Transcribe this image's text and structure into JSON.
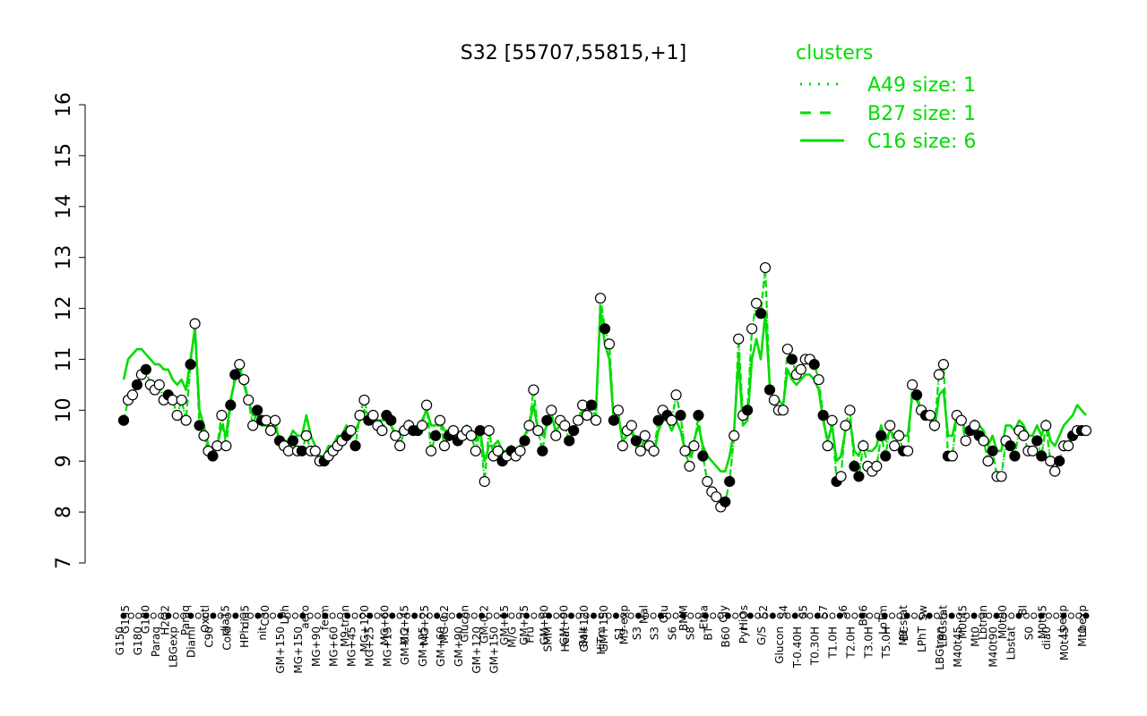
{
  "chart_data": {
    "type": "line",
    "title": "S32 [55707,55815,+1]",
    "xlabel": "",
    "ylabel": "",
    "ylim": [
      7,
      16
    ],
    "yticks": [
      7,
      8,
      9,
      10,
      11,
      12,
      13,
      14,
      15,
      16
    ],
    "grid": false,
    "legend": {
      "title": "clusters",
      "placement": "top-right",
      "entries": [
        {
          "label": "A49 size: 1",
          "style": "dotted"
        },
        {
          "label": "B27 size: 1",
          "style": "dashed"
        },
        {
          "label": "C16 size: 6",
          "style": "solid"
        }
      ]
    },
    "tick_labels_top": [
      "G135",
      "G180",
      "H2O2",
      "Paraq",
      "Oxctl",
      "dia15",
      "dia5",
      "C30",
      "LPh",
      "aero",
      "ferm",
      "M9-tran",
      "MG+120",
      "MG+60",
      "MG+45",
      "MG+25",
      "MG-0.2",
      "Glucon",
      "GM-0.2",
      "GM+15",
      "GM+25",
      "GM+60",
      "GM+90",
      "GM+120",
      "GM+150",
      "M9-exp",
      "Mal",
      "Glu",
      "BMM",
      "Etha",
      "Gly",
      "HiOs",
      "S2",
      "S4",
      "S5",
      "S7",
      "S6",
      "B36",
      "LoTm",
      "M9-stat",
      "Sw",
      "LBGstat",
      "M0t45",
      "Lbtran",
      "M0t90",
      "BI",
      "M0t45",
      "Lbexp",
      "Lbexp"
    ],
    "tick_labels_bottom": [
      "G150",
      "G180",
      "Paraq",
      "LBGexp",
      "Diami",
      "C90",
      "Cold",
      "HPh",
      "nit",
      "GM+150",
      "MG+150",
      "MG+90",
      "MG+60",
      "MG+45",
      "MG+25",
      "MG+15",
      "GM-0.2",
      "GM+25",
      "GM+60",
      "GM+90",
      "GM+120",
      "GM+150",
      "M/G",
      "Fru",
      "SMM",
      "Heat",
      "Salt",
      "HiTm",
      "S1",
      "S3",
      "S3",
      "S6",
      "S8",
      "BT",
      "B60",
      "Pyr",
      "G/S",
      "Glucon",
      "T-0.40H",
      "T0.30H",
      "T1.0H",
      "T2.0H",
      "T3.0H",
      "T5.0H",
      "BC",
      "LPhT",
      "LBGtran",
      "M40t45",
      "Mt0",
      "M40t90",
      "Lbstat",
      "S0",
      "dia0",
      "M0t45",
      "Mt0"
    ],
    "series": [
      {
        "style": "dotted",
        "values": [
          9.8,
          10.2,
          10.3,
          10.5,
          10.7,
          10.8,
          10.5,
          10.4,
          10.5,
          10.2,
          10.3,
          10.2,
          9.9,
          10.2,
          9.8,
          10.9,
          11.7,
          9.7,
          9.5,
          9.2,
          9.1,
          9.3,
          9.9,
          9.3,
          10.1,
          10.7,
          10.9,
          10.6,
          10.2,
          9.7,
          10.0,
          9.8,
          9.8,
          9.6,
          9.8,
          9.4,
          9.3,
          9.2,
          9.4,
          9.2,
          9.2,
          9.5,
          9.2,
          9.2,
          9.0,
          9.0,
          9.1,
          9.2,
          9.3,
          9.4,
          9.5,
          9.6,
          9.3,
          9.9,
          10.2,
          9.8,
          9.9,
          9.7,
          9.6,
          9.9,
          9.8,
          9.5,
          9.3,
          9.6,
          9.7,
          9.6,
          9.6,
          9.7,
          10.1,
          9.2,
          9.5,
          9.8,
          9.3,
          9.5,
          9.6,
          9.4,
          9.5,
          9.6,
          9.5,
          9.2,
          9.6,
          8.6,
          9.6,
          9.1,
          9.2,
          9.0,
          9.1,
          9.2,
          9.1,
          9.2,
          9.4,
          9.7,
          10.4,
          9.6,
          9.2,
          9.8,
          10.0,
          9.5,
          9.8,
          9.7,
          9.4,
          9.6,
          9.8,
          10.1,
          9.9,
          10.1,
          9.8,
          12.2,
          11.6,
          11.3,
          9.8,
          10.0,
          9.3,
          9.6,
          9.7,
          9.4,
          9.2,
          9.5,
          9.3,
          9.2,
          9.8,
          10.0,
          9.9,
          9.8,
          10.3,
          9.9,
          9.2,
          8.9,
          9.3,
          9.9,
          9.1,
          8.6,
          8.4,
          8.3,
          8.1,
          8.2,
          8.6,
          9.5,
          11.4,
          9.9,
          10.0,
          11.6,
          12.1,
          11.9,
          12.8,
          10.4,
          10.2,
          10.0,
          10.0,
          11.2,
          11.0,
          10.7,
          10.8,
          11.0,
          11.0,
          10.9,
          10.6,
          9.9,
          9.3,
          9.8,
          8.6,
          8.7,
          9.7,
          10.0,
          8.9,
          8.7,
          9.3,
          8.9,
          8.8,
          8.9,
          9.5,
          9.1,
          9.7,
          9.3,
          9.5,
          9.2,
          9.2,
          10.5,
          10.3,
          10.0,
          9.9,
          9.9,
          9.7,
          10.7,
          10.9,
          9.1,
          9.1,
          9.9,
          9.8,
          9.4,
          9.6,
          9.7,
          9.5,
          9.4,
          9.0,
          9.2,
          8.7,
          8.7,
          9.4,
          9.3,
          9.1,
          9.6,
          9.5,
          9.2,
          9.2,
          9.4,
          9.1,
          9.7,
          9.0,
          8.8,
          9.0,
          9.3,
          9.3,
          9.5,
          9.6,
          9.6,
          9.6
        ]
      },
      {
        "style": "dashed",
        "values": [
          9.8,
          10.2,
          10.3,
          10.5,
          10.7,
          10.8,
          10.5,
          10.4,
          10.5,
          10.2,
          10.3,
          10.2,
          9.9,
          10.2,
          9.8,
          10.9,
          11.7,
          9.7,
          9.5,
          9.2,
          9.1,
          9.3,
          9.9,
          9.3,
          10.1,
          10.7,
          10.9,
          10.6,
          10.2,
          9.7,
          10.0,
          9.8,
          9.8,
          9.6,
          9.8,
          9.4,
          9.3,
          9.2,
          9.4,
          9.2,
          9.2,
          9.5,
          9.2,
          9.2,
          9.0,
          9.0,
          9.1,
          9.2,
          9.3,
          9.4,
          9.5,
          9.6,
          9.3,
          9.9,
          10.2,
          9.8,
          9.9,
          9.7,
          9.6,
          9.9,
          9.8,
          9.5,
          9.3,
          9.6,
          9.7,
          9.6,
          9.6,
          9.7,
          10.1,
          9.2,
          9.5,
          9.8,
          9.3,
          9.5,
          9.6,
          9.4,
          9.5,
          9.6,
          9.5,
          9.2,
          9.6,
          8.6,
          9.6,
          9.1,
          9.2,
          9.0,
          9.1,
          9.2,
          9.1,
          9.2,
          9.4,
          9.7,
          10.4,
          9.6,
          9.2,
          9.8,
          10.0,
          9.5,
          9.8,
          9.7,
          9.4,
          9.6,
          9.8,
          10.1,
          9.9,
          10.1,
          9.8,
          12.2,
          11.6,
          11.3,
          9.8,
          10.0,
          9.3,
          9.6,
          9.7,
          9.4,
          9.2,
          9.5,
          9.3,
          9.2,
          9.8,
          10.0,
          9.9,
          9.8,
          10.3,
          9.9,
          9.2,
          8.9,
          9.3,
          9.9,
          9.1,
          8.6,
          8.4,
          8.3,
          8.1,
          8.2,
          8.6,
          9.5,
          11.4,
          9.9,
          10.0,
          11.6,
          12.1,
          11.9,
          12.8,
          10.4,
          10.2,
          10.0,
          10.0,
          11.2,
          11.0,
          10.7,
          10.8,
          11.0,
          11.0,
          10.9,
          10.6,
          9.9,
          9.3,
          9.8,
          8.6,
          8.7,
          9.7,
          10.0,
          8.9,
          8.7,
          9.3,
          8.9,
          8.8,
          8.9,
          9.5,
          9.1,
          9.7,
          9.3,
          9.5,
          9.2,
          9.2,
          10.5,
          10.3,
          10.0,
          9.9,
          9.9,
          9.7,
          10.7,
          10.9,
          9.1,
          9.1,
          9.9,
          9.8,
          9.4,
          9.6,
          9.7,
          9.5,
          9.4,
          9.0,
          9.2,
          8.7,
          8.7,
          9.4,
          9.3,
          9.1,
          9.6,
          9.5,
          9.2,
          9.2,
          9.4,
          9.1,
          9.7,
          9.0,
          8.8,
          9.0,
          9.3,
          9.3,
          9.5,
          9.6,
          9.6,
          9.6
        ]
      },
      {
        "style": "solid",
        "values": [
          10.6,
          11.0,
          11.1,
          11.2,
          11.2,
          11.1,
          11.0,
          10.9,
          10.9,
          10.8,
          10.8,
          10.6,
          10.5,
          10.6,
          10.4,
          11.0,
          11.6,
          10.0,
          9.7,
          9.3,
          9.2,
          9.3,
          9.7,
          9.5,
          10.2,
          10.6,
          10.8,
          10.5,
          10.2,
          9.9,
          9.9,
          9.7,
          9.7,
          9.6,
          9.7,
          9.4,
          9.4,
          9.4,
          9.6,
          9.5,
          9.5,
          9.9,
          9.5,
          9.3,
          9.1,
          9.1,
          9.3,
          9.3,
          9.5,
          9.5,
          9.7,
          9.6,
          9.6,
          9.8,
          10.0,
          9.9,
          9.9,
          9.8,
          9.8,
          9.8,
          9.7,
          9.5,
          9.6,
          9.7,
          9.8,
          9.6,
          9.6,
          9.8,
          10.0,
          9.7,
          9.7,
          9.8,
          9.6,
          9.6,
          9.6,
          9.5,
          9.6,
          9.7,
          9.6,
          9.4,
          9.6,
          9.0,
          9.3,
          9.3,
          9.4,
          9.2,
          9.2,
          9.3,
          9.2,
          9.3,
          9.5,
          9.7,
          10.1,
          9.6,
          9.5,
          9.7,
          9.9,
          9.6,
          9.7,
          9.8,
          9.6,
          9.6,
          9.8,
          10.0,
          10.0,
          10.1,
          10.0,
          12.0,
          11.3,
          11.0,
          9.8,
          9.9,
          9.4,
          9.5,
          9.6,
          9.3,
          9.2,
          9.4,
          9.2,
          9.1,
          9.6,
          9.8,
          9.8,
          9.6,
          9.8,
          9.6,
          9.2,
          9.1,
          9.4,
          9.7,
          9.3,
          9.1,
          9.0,
          8.9,
          8.8,
          8.8,
          9.1,
          9.6,
          11.0,
          9.7,
          9.8,
          11.0,
          11.4,
          11.0,
          11.9,
          10.5,
          10.1,
          10.2,
          10.1,
          10.8,
          10.6,
          10.5,
          10.6,
          10.7,
          10.7,
          10.6,
          10.4,
          9.8,
          9.4,
          9.7,
          9.0,
          9.1,
          9.6,
          9.8,
          9.2,
          9.1,
          9.4,
          9.2,
          9.2,
          9.3,
          9.7,
          9.4,
          9.6,
          9.5,
          9.6,
          9.5,
          9.5,
          10.3,
          10.2,
          10.0,
          9.9,
          9.8,
          9.6,
          10.3,
          10.4,
          9.5,
          9.5,
          9.9,
          9.8,
          9.6,
          9.7,
          9.8,
          9.7,
          9.6,
          9.3,
          9.5,
          9.2,
          9.2,
          9.7,
          9.7,
          9.6,
          9.8,
          9.7,
          9.5,
          9.5,
          9.7,
          9.5,
          9.8,
          9.4,
          9.3,
          9.5,
          9.7,
          9.8,
          9.9,
          10.1,
          10.0,
          9.9
        ]
      }
    ]
  },
  "colors": {
    "series": "#00dd00",
    "legend_text": "#00dd00",
    "axis": "#000000",
    "marker_fill": "#ffffff",
    "marker_stroke": "#000000",
    "marker_dark": "#000000"
  }
}
